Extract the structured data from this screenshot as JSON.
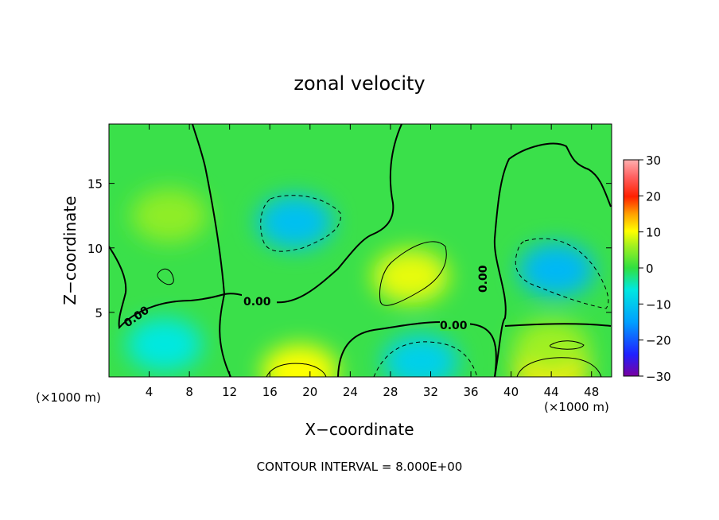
{
  "chart_data": {
    "type": "heatmap",
    "title": "zonal velocity",
    "xlabel": "X−coordinate",
    "ylabel": "Z−coordinate",
    "x_unit_label": "(×1000 m)",
    "x_unit_label_right": "(×1000 m)",
    "footer": "CONTOUR INTERVAL = 8.000E+00",
    "xlim": [
      0,
      50
    ],
    "ylim": [
      0,
      19.6
    ],
    "x_ticks": [
      4,
      8,
      12,
      16,
      20,
      24,
      28,
      32,
      36,
      40,
      44,
      48
    ],
    "x_tick_labels": [
      "4",
      "8",
      "12",
      "16",
      "20",
      "24",
      "28",
      "32",
      "36",
      "40",
      "44",
      "48"
    ],
    "y_ticks": [
      5,
      10,
      15
    ],
    "y_tick_labels": [
      "5",
      "10",
      "15"
    ],
    "colorbar": {
      "min": -30,
      "max": 30,
      "ticks": [
        30,
        20,
        10,
        0,
        -10,
        -20,
        -30
      ],
      "tick_labels": [
        "30",
        "20",
        "10",
        "0",
        "−10",
        "−20",
        "−30"
      ]
    },
    "contour_interval": 8,
    "contour_labels": [
      "0.00",
      "0.00",
      "0.00",
      "0.00"
    ],
    "features": [
      {
        "x": 6,
        "z": 12.5,
        "value": 5
      },
      {
        "x": 18.5,
        "z": 12,
        "value": -11
      },
      {
        "x": 30,
        "z": 7.8,
        "value": 9
      },
      {
        "x": 44.5,
        "z": 8.3,
        "value": -12
      },
      {
        "x": 31,
        "z": 1.2,
        "value": -9
      },
      {
        "x": 5.5,
        "z": 2.5,
        "value": -6
      },
      {
        "x": 19,
        "z": 0.4,
        "value": 10
      },
      {
        "x": 44,
        "z": 0.6,
        "value": 11
      },
      {
        "x": 44,
        "z": 2.3,
        "value": 6
      }
    ]
  }
}
